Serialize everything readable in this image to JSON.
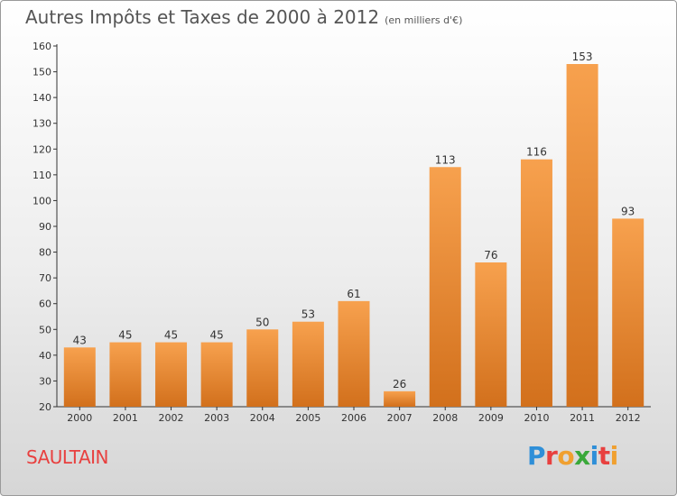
{
  "header": {
    "title": "Autres Impôts et Taxes de 2000 à 2012",
    "subtitle": "(en milliers d'€)"
  },
  "footer": {
    "commune": "SAULTAIN",
    "logo_text": "Proxiti"
  },
  "colors": {
    "bar_light": "#f7a14e",
    "bar_dark": "#d2701c",
    "commune_text": "#e8403f",
    "logo_letters": [
      "#2f8fd8",
      "#e8403f",
      "#f0a030",
      "#3aa83a",
      "#2f8fd8",
      "#e8403f",
      "#f0a030"
    ]
  },
  "chart_data": {
    "type": "bar",
    "categories": [
      "2000",
      "2001",
      "2002",
      "2003",
      "2004",
      "2005",
      "2006",
      "2007",
      "2008",
      "2009",
      "2010",
      "2011",
      "2012"
    ],
    "values": [
      43,
      45,
      45,
      45,
      50,
      53,
      61,
      26,
      113,
      76,
      116,
      153,
      93
    ],
    "title": "Autres Impôts et Taxes de 2000 à 2012",
    "subtitle": "(en milliers d'€)",
    "xlabel": "",
    "ylabel": "",
    "ylim": [
      20,
      160
    ],
    "yticks": [
      20,
      30,
      40,
      50,
      60,
      70,
      80,
      90,
      100,
      110,
      120,
      130,
      140,
      150,
      160
    ],
    "grid": false,
    "legend": "none"
  }
}
